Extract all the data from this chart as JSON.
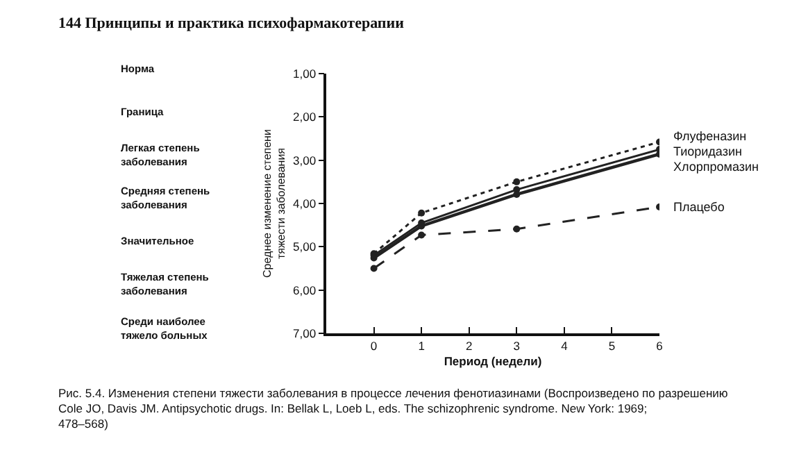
{
  "chart_data": {
    "type": "line",
    "xlabel": "Период (недели)",
    "ylabel": "Среднее изменение степени тяжести заболевания",
    "annotations": [
      "144 Принципы и практика психофармакотерапии",
      "Рис. 5.4. Изменения степени тяжести заболевания в процессе лечения фенотиазинами (Воспроизведено по разрешению Cole JO, Davis JM. Antipsychotic drugs. In: Bellak L, Loeb L, eds. The schizophrenic syndrome. New York: 1969; 478–568)",
      "Норма",
      "Граница",
      "Легкая степень заболевания",
      "Средняя степень заболевания",
      "Значительное",
      "Тяжелая степень заболевания",
      "Среди наиболее тяжело больных"
    ],
    "x": [
      0,
      1,
      3,
      6
    ],
    "series": [
      {
        "name": "Флуфеназин",
        "color": "#222222",
        "line_style": "dotted",
        "values": [
          5.16,
          4.22,
          3.5,
          2.58
        ]
      },
      {
        "name": "Тиоридазин",
        "color": "#222222",
        "line_style": "solid",
        "values": [
          5.2,
          4.45,
          3.68,
          2.75
        ]
      },
      {
        "name": "Хлорпромазин",
        "color": "#222222",
        "line_style": "solid",
        "values": [
          5.26,
          4.52,
          3.79,
          2.86
        ]
      },
      {
        "name": "Плацебо",
        "color": "#222222",
        "line_style": "dashed",
        "values": [
          5.5,
          4.73,
          4.59,
          4.08
        ]
      }
    ],
    "xlim": [
      -1,
      6
    ],
    "xticks": [
      0,
      1,
      2,
      3,
      4,
      5,
      6
    ],
    "ylim": [
      7,
      1
    ],
    "yticks": [
      {
        "value": 1,
        "label": "1,00"
      },
      {
        "value": 2,
        "label": "2,00"
      },
      {
        "value": 3,
        "label": "3,00"
      },
      {
        "value": 4,
        "label": "4,00"
      },
      {
        "value": 5,
        "label": "5,00"
      },
      {
        "value": 6,
        "label": "6,00"
      },
      {
        "value": 7,
        "label": "7,00"
      }
    ],
    "grid": false,
    "legend": false,
    "marker": "circle"
  }
}
